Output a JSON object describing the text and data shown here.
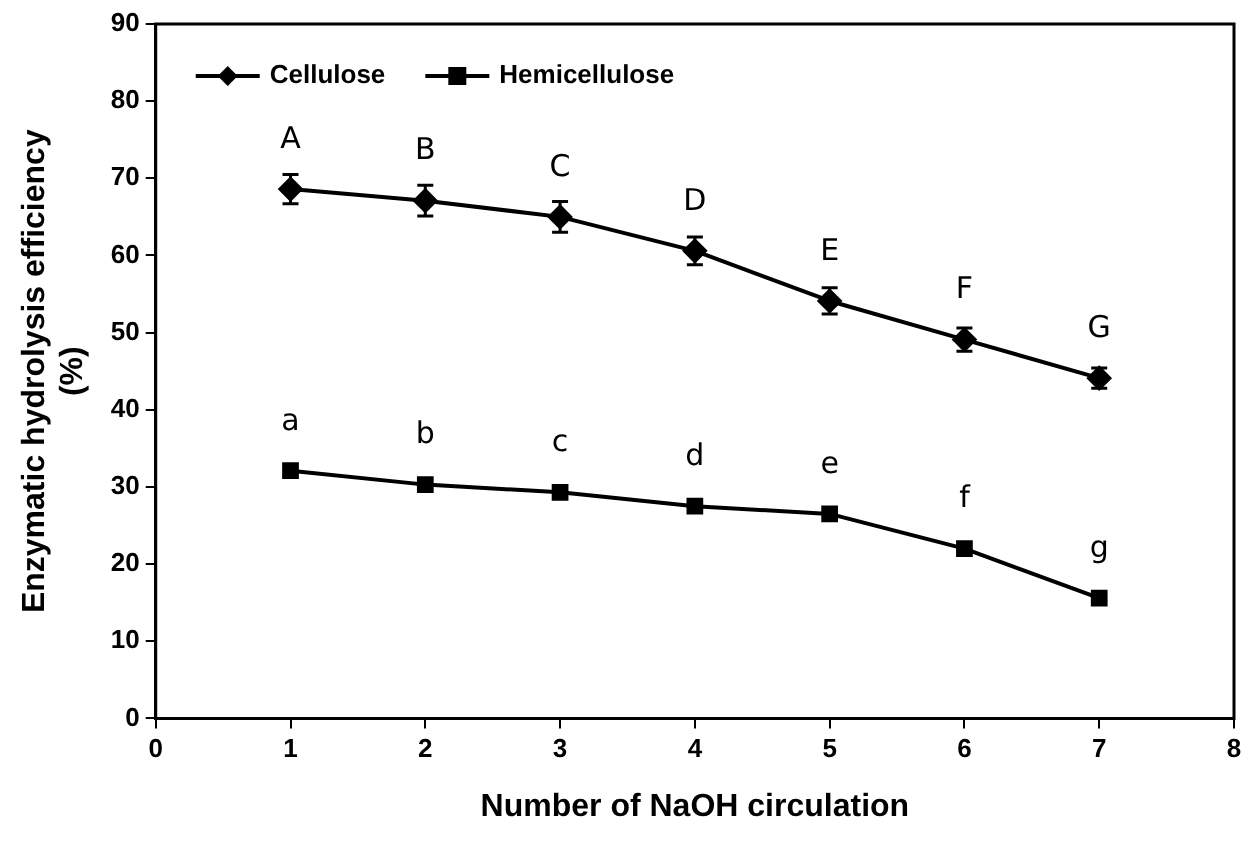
{
  "chart_data": {
    "type": "line",
    "xlabel": "Number of NaOH circulation",
    "ylabel": "Enzymatic hydrolysis efficiency (%)",
    "x": [
      1,
      2,
      3,
      4,
      5,
      6,
      7
    ],
    "series": [
      {
        "name": "Cellulose",
        "color": "#000000",
        "marker": "diamond",
        "values": [
          68.6,
          67.1,
          65.0,
          60.6,
          54.1,
          49.1,
          44.1
        ],
        "errors": [
          1.9,
          2.0,
          2.0,
          1.8,
          1.7,
          1.5,
          1.3
        ]
      },
      {
        "name": "Hemicellulose",
        "color": "#000000",
        "marker": "square",
        "values": [
          32.1,
          30.3,
          29.3,
          27.5,
          26.5,
          22.0,
          15.6
        ]
      }
    ],
    "annotations": [
      {
        "text": "A",
        "x": 1,
        "y": 68.6
      },
      {
        "text": "B",
        "x": 2,
        "y": 67.1
      },
      {
        "text": "C",
        "x": 3,
        "y": 65.0
      },
      {
        "text": "D",
        "x": 4,
        "y": 60.6
      },
      {
        "text": "E",
        "x": 5,
        "y": 54.1
      },
      {
        "text": "F",
        "x": 6,
        "y": 49.1
      },
      {
        "text": "G",
        "x": 7,
        "y": 44.1
      },
      {
        "text": "a",
        "x": 1,
        "y": 32.1
      },
      {
        "text": "b",
        "x": 2,
        "y": 30.3
      },
      {
        "text": "c",
        "x": 3,
        "y": 29.3
      },
      {
        "text": "d",
        "x": 4,
        "y": 27.5
      },
      {
        "text": "e",
        "x": 5,
        "y": 26.5
      },
      {
        "text": "f",
        "x": 6,
        "y": 22.0
      },
      {
        "text": "g",
        "x": 7,
        "y": 15.6
      }
    ],
    "xlim": [
      0,
      8
    ],
    "xticks": [
      0,
      1,
      2,
      3,
      4,
      5,
      6,
      7,
      8
    ],
    "ylim": [
      0,
      90
    ],
    "yticks": [
      0,
      10,
      20,
      30,
      40,
      50,
      60,
      70,
      80,
      90
    ],
    "grid": false,
    "legend": "top left"
  }
}
